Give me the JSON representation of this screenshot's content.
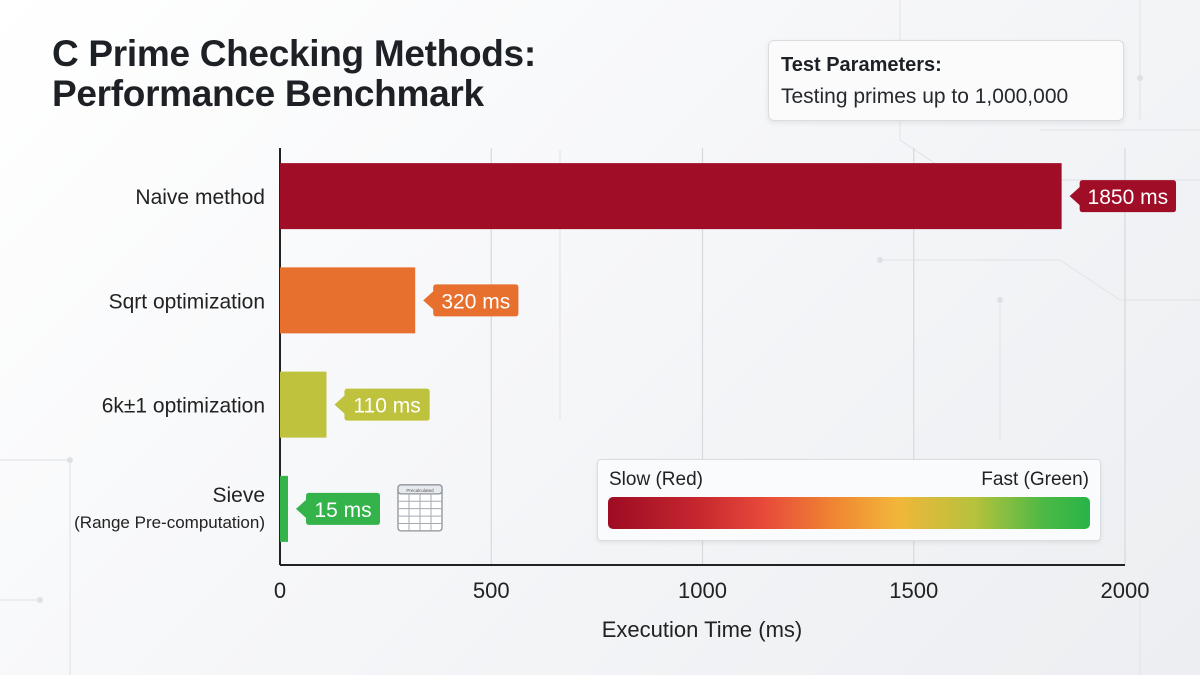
{
  "title": {
    "line1": "C Prime Checking Methods:",
    "line2": "Performance Benchmark"
  },
  "test_parameters": {
    "heading": "Test Parameters:",
    "text": "Testing primes up to 1,000,000"
  },
  "legend": {
    "slow_label": "Slow (Red)",
    "fast_label": "Fast (Green)"
  },
  "sieve_icon_label": "Precalculated",
  "colors": {
    "naive": "#a00d26",
    "sqrt": "#e8702f",
    "sixk": "#bfc23c",
    "sieve": "#34b34a"
  },
  "chart_data": {
    "type": "bar",
    "orientation": "horizontal",
    "title": "C Prime Checking Methods: Performance Benchmark",
    "xlabel": "Execution Time (ms)",
    "ylabel": "",
    "xlim": [
      0,
      2000
    ],
    "xticks": [
      0,
      500,
      1000,
      1500,
      2000
    ],
    "grid": true,
    "categories": [
      {
        "label": "Naive method",
        "sublabel": ""
      },
      {
        "label": "Sqrt optimization",
        "sublabel": ""
      },
      {
        "label": "6k±1 optimization",
        "sublabel": ""
      },
      {
        "label": "Sieve",
        "sublabel": "(Range Pre-computation)"
      }
    ],
    "values": [
      1850,
      320,
      110,
      15
    ],
    "value_labels": [
      "1850 ms",
      "320 ms",
      "110 ms",
      "15 ms"
    ],
    "bar_colors": [
      "#a00d26",
      "#e8702f",
      "#bfc23c",
      "#34b34a"
    ]
  }
}
